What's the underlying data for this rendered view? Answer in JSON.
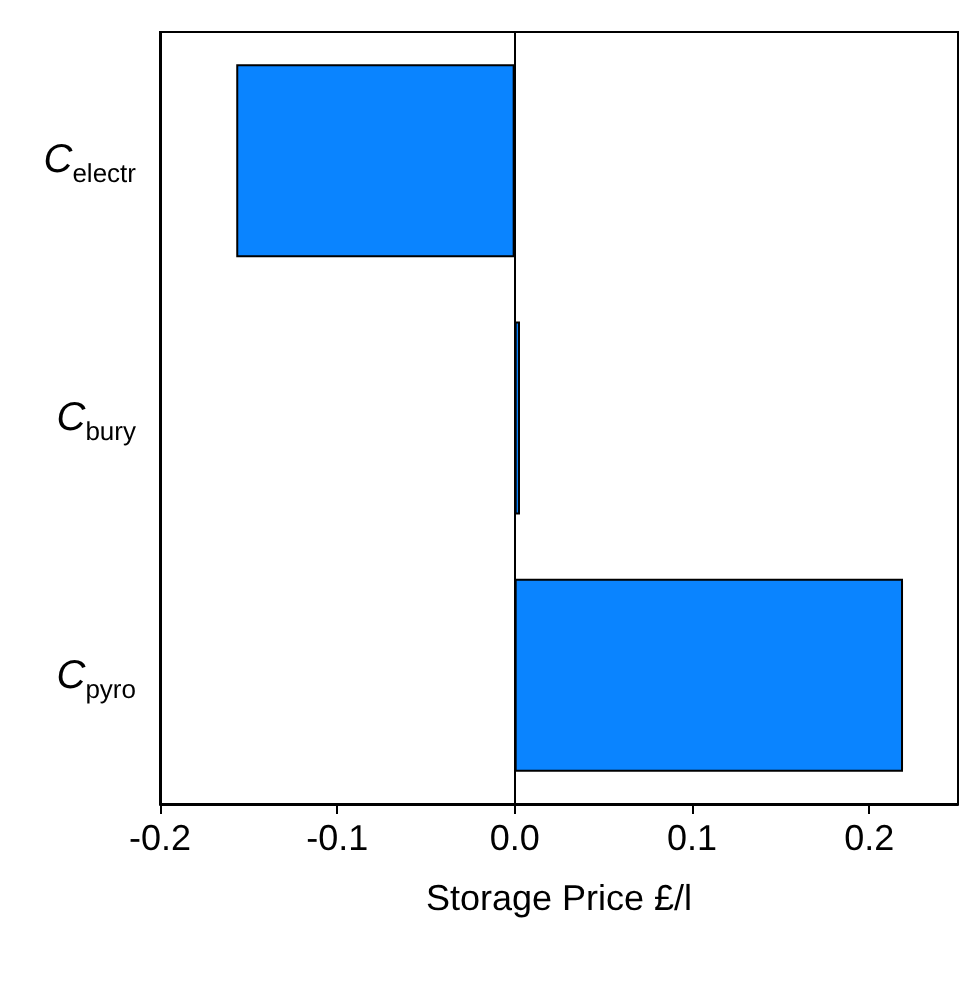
{
  "chart_data": {
    "type": "bar",
    "orientation": "horizontal",
    "categories": [
      "C$_{electr}$",
      "C$_{bury}$",
      "C$_{pyro}$"
    ],
    "values": [
      -0.157,
      0.003,
      0.219
    ],
    "color": "#0a84ff",
    "xlabel": "Storage Price £/l",
    "xlim": [
      -0.2,
      0.25
    ],
    "xticks": [
      -0.2,
      -0.1,
      {
        "value": 0,
        "label": "0.0"
      },
      0.1,
      0.2
    ],
    "ref_lines": [
      {
        "axis": "x",
        "value": 0,
        "color": "#000000"
      }
    ]
  }
}
